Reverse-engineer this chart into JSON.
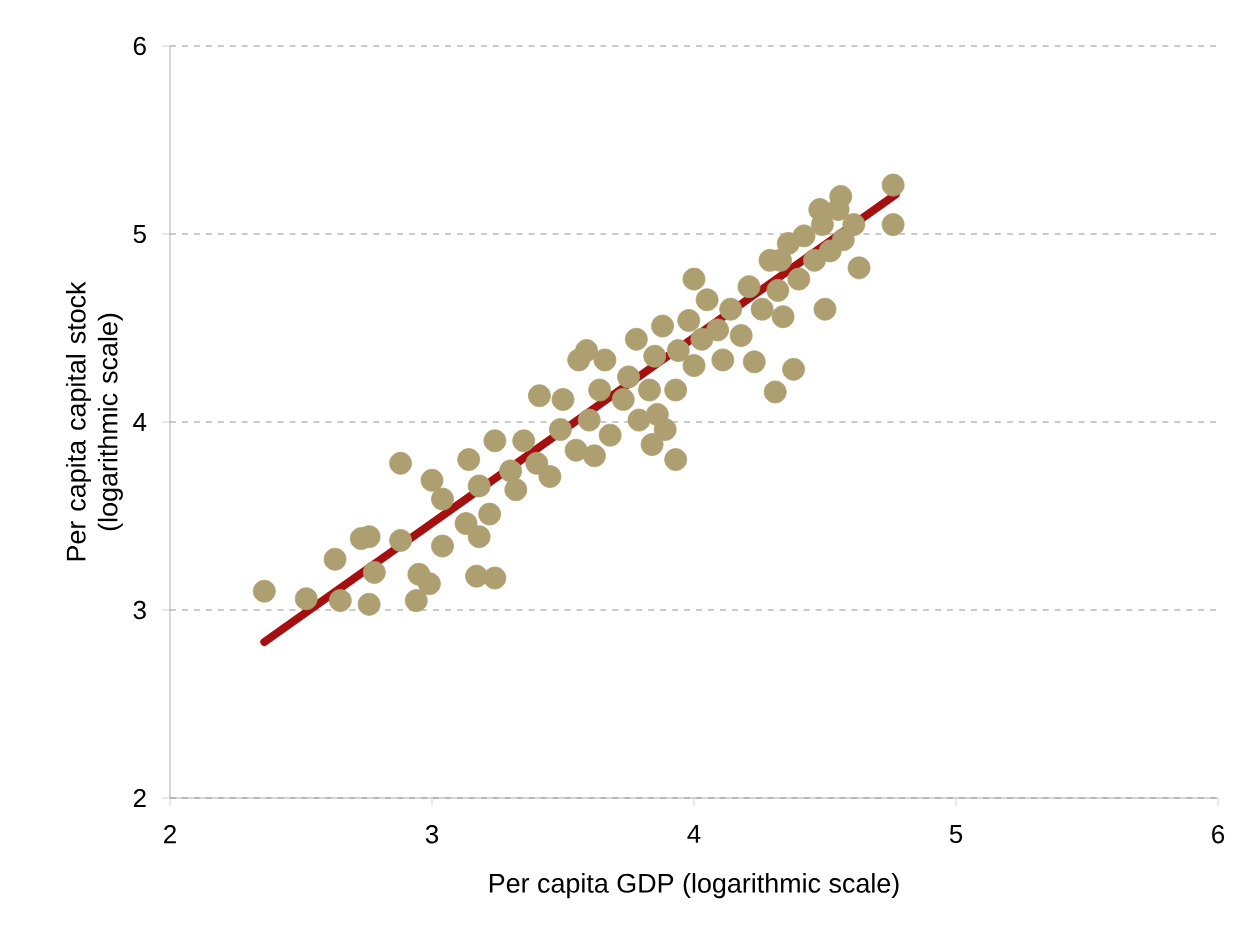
{
  "chart_data": {
    "type": "scatter",
    "xlabel": "Per capita GDP (logarithmic scale)",
    "ylabel": "Per capita capital stock (logarithmic scale)",
    "xlim": [
      2,
      6
    ],
    "ylim": [
      2,
      6
    ],
    "xticks": [
      2,
      3,
      4,
      5,
      6
    ],
    "yticks": [
      2,
      3,
      4,
      5,
      6
    ],
    "grid": "y",
    "marker": "circle",
    "series": [
      {
        "color": "#ad9f70",
        "x": [
          2.36,
          2.52,
          2.63,
          2.65,
          2.73,
          2.76,
          2.76,
          2.78,
          2.88,
          2.88,
          2.94,
          2.95,
          2.99,
          3.0,
          3.04,
          3.04,
          3.13,
          3.14,
          3.17,
          3.18,
          3.18,
          3.24,
          3.24,
          3.3,
          3.32,
          3.22,
          3.35,
          3.4,
          3.41,
          3.45,
          3.49,
          3.5,
          3.55,
          3.56,
          3.59,
          3.6,
          3.62,
          3.64,
          3.66,
          3.68,
          3.73,
          3.75,
          3.78,
          3.79,
          3.83,
          3.85,
          3.88,
          3.89,
          3.93,
          3.94,
          3.93,
          3.84,
          3.86,
          3.98,
          4.0,
          4.0,
          4.03,
          4.05,
          4.09,
          4.11,
          4.14,
          4.18,
          4.21,
          4.23,
          4.26,
          4.29,
          4.31,
          4.32,
          4.38,
          4.34,
          4.36,
          4.33,
          4.4,
          4.42,
          4.46,
          4.49,
          4.5,
          4.52,
          4.55,
          4.57,
          4.63,
          4.61,
          4.56,
          4.48,
          4.76,
          4.76
        ],
        "values": [
          3.1,
          3.06,
          3.27,
          3.05,
          3.38,
          3.39,
          3.03,
          3.2,
          3.37,
          3.78,
          3.05,
          3.19,
          3.14,
          3.69,
          3.34,
          3.59,
          3.46,
          3.8,
          3.18,
          3.39,
          3.66,
          3.17,
          3.9,
          3.74,
          3.64,
          3.51,
          3.9,
          3.78,
          4.14,
          3.71,
          3.96,
          4.12,
          3.85,
          4.33,
          4.38,
          4.01,
          3.82,
          4.17,
          4.33,
          3.93,
          4.12,
          4.24,
          4.44,
          4.01,
          4.17,
          4.35,
          4.51,
          3.96,
          4.17,
          4.38,
          3.8,
          3.88,
          4.04,
          4.54,
          4.76,
          4.3,
          4.44,
          4.65,
          4.49,
          4.33,
          4.6,
          4.46,
          4.72,
          4.32,
          4.6,
          4.86,
          4.16,
          4.7,
          4.28,
          4.56,
          4.95,
          4.86,
          4.76,
          4.99,
          4.86,
          5.05,
          4.6,
          4.91,
          5.13,
          4.97,
          4.82,
          5.05,
          5.2,
          5.13,
          5.26,
          5.05
        ]
      },
      {
        "type": "line",
        "marker": "none",
        "line_style": "solid",
        "color": "#a50f0f",
        "x": [
          2.36,
          4.77
        ],
        "values": [
          2.83,
          5.21
        ]
      }
    ]
  }
}
